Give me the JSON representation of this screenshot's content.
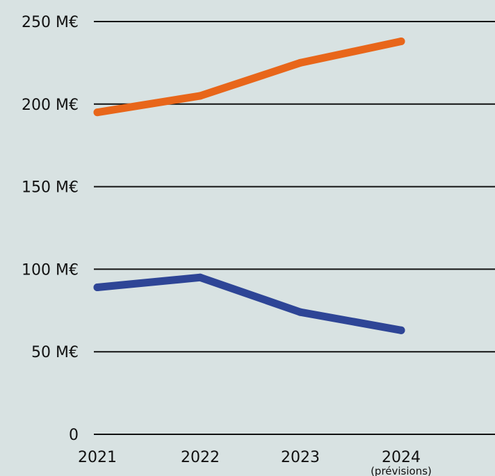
{
  "chart_data": {
    "type": "line",
    "title": "",
    "xlabel": "",
    "ylabel": "",
    "categories": [
      "2021",
      "2022",
      "2023",
      "2024"
    ],
    "category_notes": [
      "",
      "",
      "",
      "(prévisions)"
    ],
    "ylim": [
      0,
      250
    ],
    "yticks": [
      0,
      50,
      100,
      150,
      200,
      250
    ],
    "ytick_labels": [
      "0",
      "50 M€",
      "100 M€",
      "150 M€",
      "200 M€",
      "250 M€"
    ],
    "grid": true,
    "legend": "none",
    "series": [
      {
        "color": "#e8661a",
        "values": [
          195,
          205,
          225,
          238
        ]
      },
      {
        "color": "#2e4596",
        "values": [
          89,
          95,
          74,
          63
        ]
      }
    ]
  }
}
